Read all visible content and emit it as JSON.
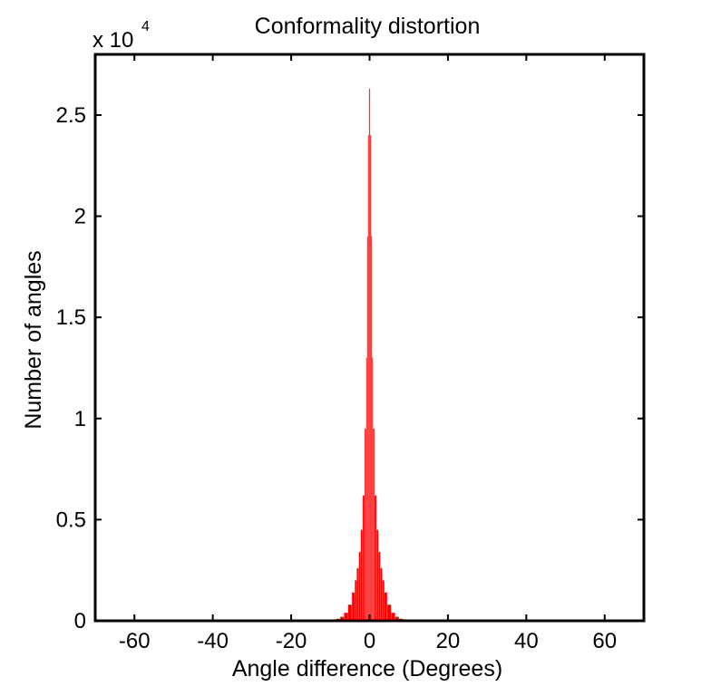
{
  "chart_data": {
    "type": "bar",
    "title": "Conformality distortion",
    "xlabel": "Angle difference (Degrees)",
    "ylabel": "Number of angles",
    "y_exponent_base": "x 10",
    "y_exponent_power": "4",
    "xlim": [
      -70,
      70
    ],
    "ylim": [
      0,
      2.8
    ],
    "x_ticks": [
      -60,
      -40,
      -20,
      0,
      20,
      40,
      60
    ],
    "y_ticks": [
      0,
      0.5,
      1,
      1.5,
      2,
      2.5
    ],
    "x_tick_labels": [
      "-60",
      "-40",
      "-20",
      "0",
      "20",
      "40",
      "60"
    ],
    "y_tick_labels": [
      "0",
      "0.5",
      "1",
      "1.5",
      "2",
      "2.5"
    ],
    "bar_color": "#ff0000",
    "bar_edge_color": "#ff9999",
    "grid": false,
    "series": [
      {
        "x": [
          -10,
          -9,
          -8,
          -7,
          -6,
          -5,
          -4,
          -3.5,
          -3,
          -2.5,
          -2,
          -1.5,
          -1,
          -0.75,
          -0.5,
          -0.25,
          0,
          0.25,
          0.5,
          0.75,
          1,
          1.5,
          2,
          2.5,
          3,
          3.5,
          4,
          5,
          6,
          7,
          8,
          9,
          10
        ],
        "values": [
          0.002,
          0.005,
          0.01,
          0.02,
          0.04,
          0.08,
          0.14,
          0.2,
          0.26,
          0.34,
          0.45,
          0.62,
          0.95,
          1.3,
          1.9,
          2.4,
          2.63,
          2.4,
          1.9,
          1.3,
          0.95,
          0.62,
          0.45,
          0.34,
          0.26,
          0.2,
          0.14,
          0.08,
          0.04,
          0.02,
          0.01,
          0.005,
          0.002
        ]
      }
    ]
  }
}
